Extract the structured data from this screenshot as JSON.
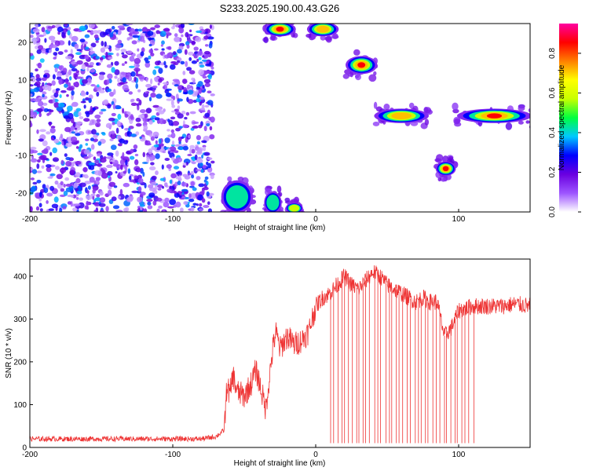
{
  "title": "S233.2025.190.00.43.G26",
  "chart_data": [
    {
      "type": "heatmap",
      "xlabel": "Height of straight line (km)",
      "ylabel": "Frequency (Hz)",
      "xlim": [
        -200,
        150
      ],
      "ylim": [
        -25,
        25
      ],
      "x_ticks": [
        -200,
        -100,
        0,
        100
      ],
      "y_ticks": [
        -20,
        -10,
        0,
        10,
        20
      ],
      "colorbar": {
        "label": "Normalized spectral amplitude",
        "range": [
          0,
          0.95
        ],
        "ticks": [
          "0.0",
          "0.2",
          "0.4",
          "0.6",
          "0.8"
        ],
        "tick_values": [
          0,
          0.2,
          0.4,
          0.6,
          0.8
        ],
        "colors": [
          "#ffffff",
          "#9d55ff",
          "#6a00e0",
          "#0000ff",
          "#00c8ff",
          "#00ff40",
          "#c8ff00",
          "#ffff00",
          "#ff8000",
          "#ff0000",
          "#ff00a0"
        ]
      },
      "noise_region": {
        "x": [
          -200,
          -72
        ],
        "y": [
          -25,
          25
        ]
      },
      "features": [
        {
          "x": [
            -35,
            -15
          ],
          "y": [
            22,
            25
          ],
          "peak": 0.9
        },
        {
          "x": [
            -5,
            15
          ],
          "y": [
            22,
            25
          ],
          "peak": 0.85
        },
        {
          "x": [
            22,
            42
          ],
          "y": [
            12,
            16
          ],
          "peak": 0.9
        },
        {
          "x": [
            42,
            78
          ],
          "y": [
            -1,
            2
          ],
          "peak": 0.85
        },
        {
          "x": [
            -65,
            -45
          ],
          "y": [
            -25,
            -17
          ],
          "peak": 0.5
        },
        {
          "x": [
            -35,
            -25
          ],
          "y": [
            -25,
            -20
          ],
          "peak": 0.5
        },
        {
          "x": [
            -20,
            -10
          ],
          "y": [
            -25,
            -23
          ],
          "peak": 0.6
        },
        {
          "x": [
            85,
            97
          ],
          "y": [
            -15,
            -12
          ],
          "peak": 0.9
        },
        {
          "x": [
            100,
            150
          ],
          "y": [
            -1,
            2
          ],
          "peak": 0.9
        }
      ]
    },
    {
      "type": "line",
      "xlabel": "Height of straight line (km)",
      "ylabel": "SNR (10 * v/v)",
      "xlim": [
        -200,
        150
      ],
      "ylim": [
        0,
        440
      ],
      "x_ticks": [
        -200,
        -100,
        0,
        100
      ],
      "y_ticks": [
        0,
        100,
        200,
        300,
        400
      ],
      "color": "#ee3333",
      "series": [
        {
          "x": [
            -200,
            -150,
            -100,
            -80,
            -70,
            -64,
            -62,
            -60,
            -58,
            -55,
            -50,
            -45,
            -42,
            -40,
            -35,
            -30,
            -28,
            -25,
            -20,
            -15,
            -10,
            -5,
            0,
            5,
            10,
            15,
            20,
            25,
            30,
            35,
            40,
            45,
            50,
            55,
            60,
            65,
            70,
            75,
            80,
            85,
            90,
            95,
            100,
            110,
            120,
            130,
            140,
            150
          ],
          "y": [
            20,
            20,
            20,
            20,
            25,
            40,
            150,
            120,
            170,
            130,
            120,
            150,
            180,
            160,
            90,
            230,
            270,
            230,
            260,
            240,
            250,
            270,
            330,
            350,
            360,
            380,
            400,
            380,
            370,
            390,
            410,
            400,
            380,
            370,
            360,
            350,
            340,
            350,
            340,
            340,
            260,
            280,
            320,
            330,
            330,
            330,
            335,
            330
          ]
        }
      ],
      "dips": {
        "x_start": 10,
        "x_end": 110,
        "count": 40,
        "low": 10
      }
    }
  ]
}
